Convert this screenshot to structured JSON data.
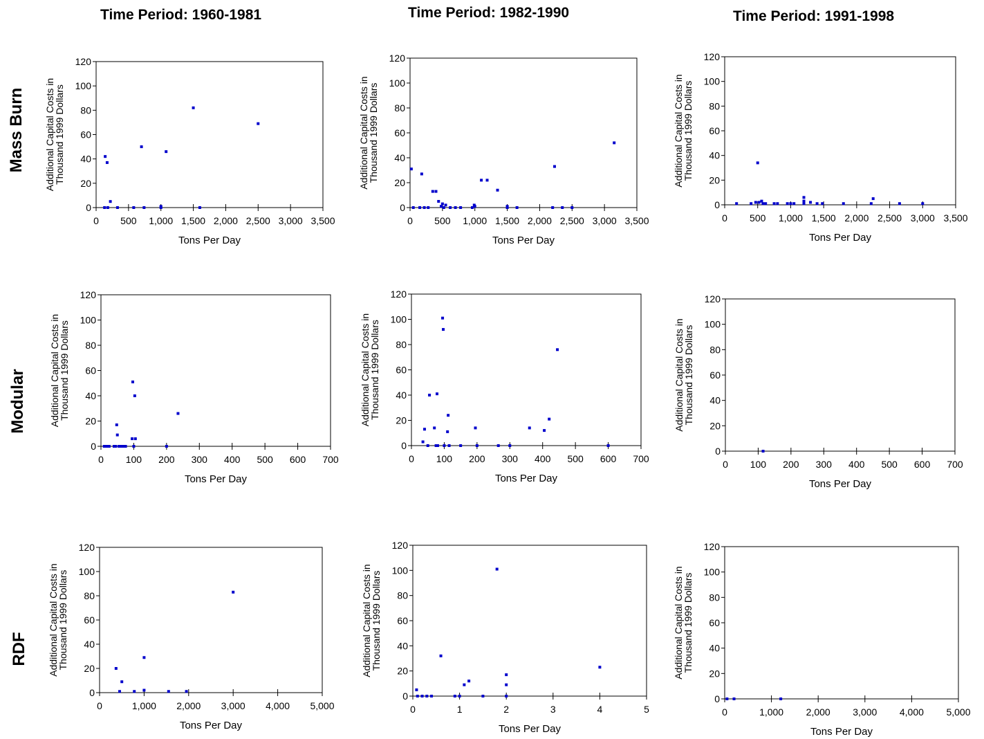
{
  "column_titles": [
    "Time Period: 1960-1981",
    "Time Period: 1982-1990",
    "Time Period: 1991-1998"
  ],
  "row_titles": [
    "Mass Burn",
    "Modular",
    "RDF"
  ],
  "colors": {
    "point": "#0000cc",
    "point_alt": "#aa3300",
    "axis": "#000000"
  },
  "chart_data": [
    {
      "type": "scatter",
      "row": 0,
      "col": 0,
      "xlabel": "Tons Per Day",
      "ylabel": [
        "Additional Capital Costs in",
        "Thousand 1999 Dollars"
      ],
      "xlim": [
        0,
        3500
      ],
      "ylim": [
        0,
        120
      ],
      "xticks": [
        0,
        500,
        1000,
        1500,
        2000,
        2500,
        3000,
        3500
      ],
      "xtick_labels": [
        "0",
        "500",
        "1,000",
        "1,500",
        "2,000",
        "2,500",
        "3,000",
        "3,500"
      ],
      "yticks": [
        0,
        20,
        40,
        60,
        80,
        100,
        120
      ],
      "ytick_labels": [
        "0",
        "20",
        "40",
        "60",
        "80",
        "100",
        "120"
      ],
      "points": [
        {
          "x": 140,
          "y": 42
        },
        {
          "x": 170,
          "y": 37
        },
        {
          "x": 220,
          "y": 5
        },
        {
          "x": 130,
          "y": 0
        },
        {
          "x": 180,
          "y": 0
        },
        {
          "x": 330,
          "y": 0
        },
        {
          "x": 580,
          "y": 0
        },
        {
          "x": 700,
          "y": 50
        },
        {
          "x": 740,
          "y": 0
        },
        {
          "x": 1000,
          "y": 0
        },
        {
          "x": 1000,
          "y": 1
        },
        {
          "x": 1080,
          "y": 46
        },
        {
          "x": 1500,
          "y": 82
        },
        {
          "x": 1600,
          "y": 0
        },
        {
          "x": 2500,
          "y": 69
        }
      ]
    },
    {
      "type": "scatter",
      "row": 0,
      "col": 1,
      "xlabel": "Tons Per Day",
      "ylabel": [
        "Additional Capital Costs in",
        "Thousand 1999 Dollars"
      ],
      "xlim": [
        0,
        3500
      ],
      "ylim": [
        0,
        120
      ],
      "xticks": [
        0,
        500,
        1000,
        1500,
        2000,
        2500,
        3000,
        3500
      ],
      "xtick_labels": [
        "0",
        "500",
        "1,000",
        "1,500",
        "2,000",
        "2,500",
        "3,000",
        "3,500"
      ],
      "yticks": [
        0,
        20,
        40,
        60,
        80,
        100,
        120
      ],
      "ytick_labels": [
        "0",
        "20",
        "40",
        "60",
        "80",
        "100",
        "120"
      ],
      "points": [
        {
          "x": 20,
          "y": 31
        },
        {
          "x": 50,
          "y": 0
        },
        {
          "x": 150,
          "y": 0
        },
        {
          "x": 180,
          "y": 27
        },
        {
          "x": 220,
          "y": 0
        },
        {
          "x": 280,
          "y": 0
        },
        {
          "x": 350,
          "y": 13
        },
        {
          "x": 400,
          "y": 13
        },
        {
          "x": 440,
          "y": 5
        },
        {
          "x": 480,
          "y": 1
        },
        {
          "x": 500,
          "y": 3
        },
        {
          "x": 520,
          "y": 0
        },
        {
          "x": 550,
          "y": 2
        },
        {
          "x": 620,
          "y": 0
        },
        {
          "x": 700,
          "y": 0
        },
        {
          "x": 780,
          "y": 0
        },
        {
          "x": 960,
          "y": 0
        },
        {
          "x": 990,
          "y": 2
        },
        {
          "x": 1000,
          "y": 1
        },
        {
          "x": 1100,
          "y": 22
        },
        {
          "x": 1190,
          "y": 22
        },
        {
          "x": 1350,
          "y": 14
        },
        {
          "x": 1500,
          "y": 1
        },
        {
          "x": 1500,
          "y": 0
        },
        {
          "x": 1650,
          "y": 0
        },
        {
          "x": 2200,
          "y": 0
        },
        {
          "x": 2230,
          "y": 33
        },
        {
          "x": 2350,
          "y": 0
        },
        {
          "x": 2500,
          "y": 0
        },
        {
          "x": 3150,
          "y": 52
        }
      ]
    },
    {
      "type": "scatter",
      "row": 0,
      "col": 2,
      "xlabel": "Tons Per Day",
      "ylabel": [
        "Additional Capital Costs in",
        "Thousand 1999 Dollars"
      ],
      "xlim": [
        0,
        3500
      ],
      "ylim": [
        0,
        120
      ],
      "xticks": [
        0,
        500,
        1000,
        1500,
        2000,
        2500,
        3000,
        3500
      ],
      "xtick_labels": [
        "0",
        "500",
        "1,000",
        "1,500",
        "2,000",
        "2,500",
        "3,000",
        "3,500"
      ],
      "yticks": [
        0,
        20,
        40,
        60,
        80,
        100,
        120
      ],
      "ytick_labels": [
        "0",
        "20",
        "40",
        "60",
        "80",
        "100",
        "120"
      ],
      "points": [
        {
          "x": 180,
          "y": 1
        },
        {
          "x": 400,
          "y": 1
        },
        {
          "x": 470,
          "y": 2
        },
        {
          "x": 500,
          "y": 34
        },
        {
          "x": 520,
          "y": 2
        },
        {
          "x": 560,
          "y": 3
        },
        {
          "x": 580,
          "y": 1
        },
        {
          "x": 620,
          "y": 1
        },
        {
          "x": 750,
          "y": 1
        },
        {
          "x": 800,
          "y": 1
        },
        {
          "x": 950,
          "y": 1
        },
        {
          "x": 1000,
          "y": 1
        },
        {
          "x": 1050,
          "y": 1
        },
        {
          "x": 1200,
          "y": 3
        },
        {
          "x": 1200,
          "y": 6
        },
        {
          "x": 1200,
          "y": 1
        },
        {
          "x": 1300,
          "y": 2
        },
        {
          "x": 1400,
          "y": 1
        },
        {
          "x": 1480,
          "y": 1
        },
        {
          "x": 1800,
          "y": 1
        },
        {
          "x": 2220,
          "y": 1
        },
        {
          "x": 2250,
          "y": 5
        },
        {
          "x": 2650,
          "y": 1
        },
        {
          "x": 3000,
          "y": 1
        }
      ]
    },
    {
      "type": "scatter",
      "row": 1,
      "col": 0,
      "xlabel": "Tons Per Day",
      "ylabel": [
        "Additional Capital Costs in",
        "Thousand 1999 Dollars"
      ],
      "xlim": [
        0,
        700
      ],
      "ylim": [
        0,
        120
      ],
      "xticks": [
        0,
        100,
        200,
        300,
        400,
        500,
        600,
        700
      ],
      "xtick_labels": [
        "0",
        "100",
        "200",
        "300",
        "400",
        "500",
        "600",
        "700"
      ],
      "yticks": [
        0,
        20,
        40,
        60,
        80,
        100,
        120
      ],
      "ytick_labels": [
        "0",
        "20",
        "40",
        "60",
        "80",
        "100",
        "120"
      ],
      "points": [
        {
          "x": 10,
          "y": 0
        },
        {
          "x": 15,
          "y": 0
        },
        {
          "x": 20,
          "y": 0
        },
        {
          "x": 25,
          "y": 0
        },
        {
          "x": 40,
          "y": 0
        },
        {
          "x": 45,
          "y": 0
        },
        {
          "x": 48,
          "y": 17
        },
        {
          "x": 50,
          "y": 9
        },
        {
          "x": 55,
          "y": 0
        },
        {
          "x": 60,
          "y": 0
        },
        {
          "x": 65,
          "y": 0
        },
        {
          "x": 70,
          "y": 0
        },
        {
          "x": 75,
          "y": 0
        },
        {
          "x": 95,
          "y": 6
        },
        {
          "x": 97,
          "y": 51
        },
        {
          "x": 100,
          "y": 0
        },
        {
          "x": 103,
          "y": 40
        },
        {
          "x": 105,
          "y": 6
        },
        {
          "x": 200,
          "y": 0
        },
        {
          "x": 235,
          "y": 26
        }
      ]
    },
    {
      "type": "scatter",
      "row": 1,
      "col": 1,
      "xlabel": "Tons Per Day",
      "ylabel": [
        "Additional Capital Costs in",
        "Thousand 1999 Dollars"
      ],
      "xlim": [
        0,
        700
      ],
      "ylim": [
        0,
        120
      ],
      "xticks": [
        0,
        100,
        200,
        300,
        400,
        500,
        600,
        700
      ],
      "xtick_labels": [
        "0",
        "100",
        "200",
        "300",
        "400",
        "500",
        "600",
        "700"
      ],
      "yticks": [
        0,
        20,
        40,
        60,
        80,
        100,
        120
      ],
      "ytick_labels": [
        "0",
        "20",
        "40",
        "60",
        "80",
        "100",
        "120"
      ],
      "points": [
        {
          "x": 35,
          "y": 3
        },
        {
          "x": 40,
          "y": 13
        },
        {
          "x": 50,
          "y": 0
        },
        {
          "x": 55,
          "y": 40
        },
        {
          "x": 70,
          "y": 14
        },
        {
          "x": 75,
          "y": 0
        },
        {
          "x": 78,
          "y": 41
        },
        {
          "x": 80,
          "y": 0
        },
        {
          "x": 95,
          "y": 101
        },
        {
          "x": 97,
          "y": 92
        },
        {
          "x": 100,
          "y": 0
        },
        {
          "x": 110,
          "y": 11
        },
        {
          "x": 112,
          "y": 24
        },
        {
          "x": 115,
          "y": 0
        },
        {
          "x": 150,
          "y": 0
        },
        {
          "x": 195,
          "y": 14
        },
        {
          "x": 200,
          "y": 0
        },
        {
          "x": 265,
          "y": 0
        },
        {
          "x": 300,
          "y": 0
        },
        {
          "x": 360,
          "y": 14
        },
        {
          "x": 405,
          "y": 12
        },
        {
          "x": 420,
          "y": 21
        },
        {
          "x": 445,
          "y": 76
        },
        {
          "x": 600,
          "y": 0
        }
      ]
    },
    {
      "type": "scatter",
      "row": 1,
      "col": 2,
      "xlabel": "Tons Per Day",
      "ylabel": [
        "Additional Capital Costs in",
        "Thousand 1999 Dollars"
      ],
      "xlim": [
        0,
        700
      ],
      "ylim": [
        0,
        120
      ],
      "xticks": [
        0,
        100,
        200,
        300,
        400,
        500,
        600,
        700
      ],
      "xtick_labels": [
        "0",
        "100",
        "200",
        "300",
        "400",
        "500",
        "600",
        "700"
      ],
      "yticks": [
        0,
        20,
        40,
        60,
        80,
        100,
        120
      ],
      "ytick_labels": [
        "0",
        "20",
        "40",
        "60",
        "80",
        "100",
        "120"
      ],
      "points": [
        {
          "x": 115,
          "y": 0
        }
      ]
    },
    {
      "type": "scatter",
      "row": 2,
      "col": 0,
      "xlabel": "Tons Per Day",
      "ylabel": [
        "Additional Capital Costs in",
        "Thousand 1999 Dollars"
      ],
      "xlim": [
        0,
        5000
      ],
      "ylim": [
        0,
        120
      ],
      "xticks": [
        0,
        1000,
        2000,
        3000,
        4000,
        5000
      ],
      "xtick_labels": [
        "0",
        "1,000",
        "2,000",
        "3,000",
        "4,000",
        "5,000"
      ],
      "yticks": [
        0,
        20,
        40,
        60,
        80,
        100,
        120
      ],
      "ytick_labels": [
        "0",
        "20",
        "40",
        "60",
        "80",
        "100",
        "120"
      ],
      "points": [
        {
          "x": 370,
          "y": 20
        },
        {
          "x": 450,
          "y": 1
        },
        {
          "x": 500,
          "y": 9
        },
        {
          "x": 780,
          "y": 1
        },
        {
          "x": 1000,
          "y": 29
        },
        {
          "x": 1000,
          "y": 2
        },
        {
          "x": 1550,
          "y": 1
        },
        {
          "x": 1950,
          "y": 1
        },
        {
          "x": 3000,
          "y": 83
        }
      ]
    },
    {
      "type": "scatter",
      "row": 2,
      "col": 1,
      "xlabel": "Tons Per Day",
      "ylabel": [
        "Additional Capital Costs in",
        "Thousand 1999 Dollars"
      ],
      "xlim": [
        0,
        5
      ],
      "ylim": [
        0,
        120
      ],
      "xticks": [
        0,
        1,
        2,
        3,
        4,
        5
      ],
      "xtick_labels": [
        "0",
        "1",
        "2",
        "3",
        "4",
        "5"
      ],
      "yticks": [
        0,
        20,
        40,
        60,
        80,
        100,
        120
      ],
      "ytick_labels": [
        "0",
        "20",
        "40",
        "60",
        "80",
        "100",
        "120"
      ],
      "points": [
        {
          "x": 0.08,
          "y": 5
        },
        {
          "x": 0.1,
          "y": 0
        },
        {
          "x": 0.2,
          "y": 0
        },
        {
          "x": 0.3,
          "y": 0
        },
        {
          "x": 0.4,
          "y": 0
        },
        {
          "x": 0.6,
          "y": 32
        },
        {
          "x": 0.9,
          "y": 0
        },
        {
          "x": 1.0,
          "y": 0
        },
        {
          "x": 1.1,
          "y": 9
        },
        {
          "x": 1.2,
          "y": 12
        },
        {
          "x": 1.5,
          "y": 0
        },
        {
          "x": 1.8,
          "y": 101
        },
        {
          "x": 2.0,
          "y": 17
        },
        {
          "x": 2.0,
          "y": 9
        },
        {
          "x": 2.0,
          "y": 0
        },
        {
          "x": 4.0,
          "y": 23
        }
      ]
    },
    {
      "type": "scatter",
      "row": 2,
      "col": 2,
      "xlabel": "Tons Per Day",
      "ylabel": [
        "Additional Capital Costs in",
        "Thousand 1999 Dollars"
      ],
      "xlim": [
        0,
        5000
      ],
      "ylim": [
        0,
        120
      ],
      "xticks": [
        0,
        1000,
        2000,
        3000,
        4000,
        5000
      ],
      "xtick_labels": [
        "0",
        "1,000",
        "2,000",
        "3,000",
        "4,000",
        "5,000"
      ],
      "yticks": [
        0,
        20,
        40,
        60,
        80,
        100,
        120
      ],
      "ytick_labels": [
        "0",
        "20",
        "40",
        "60",
        "80",
        "100",
        "120"
      ],
      "points": [
        {
          "x": 50,
          "y": 0
        },
        {
          "x": 200,
          "y": 0
        },
        {
          "x": 1200,
          "y": 0
        }
      ]
    }
  ]
}
